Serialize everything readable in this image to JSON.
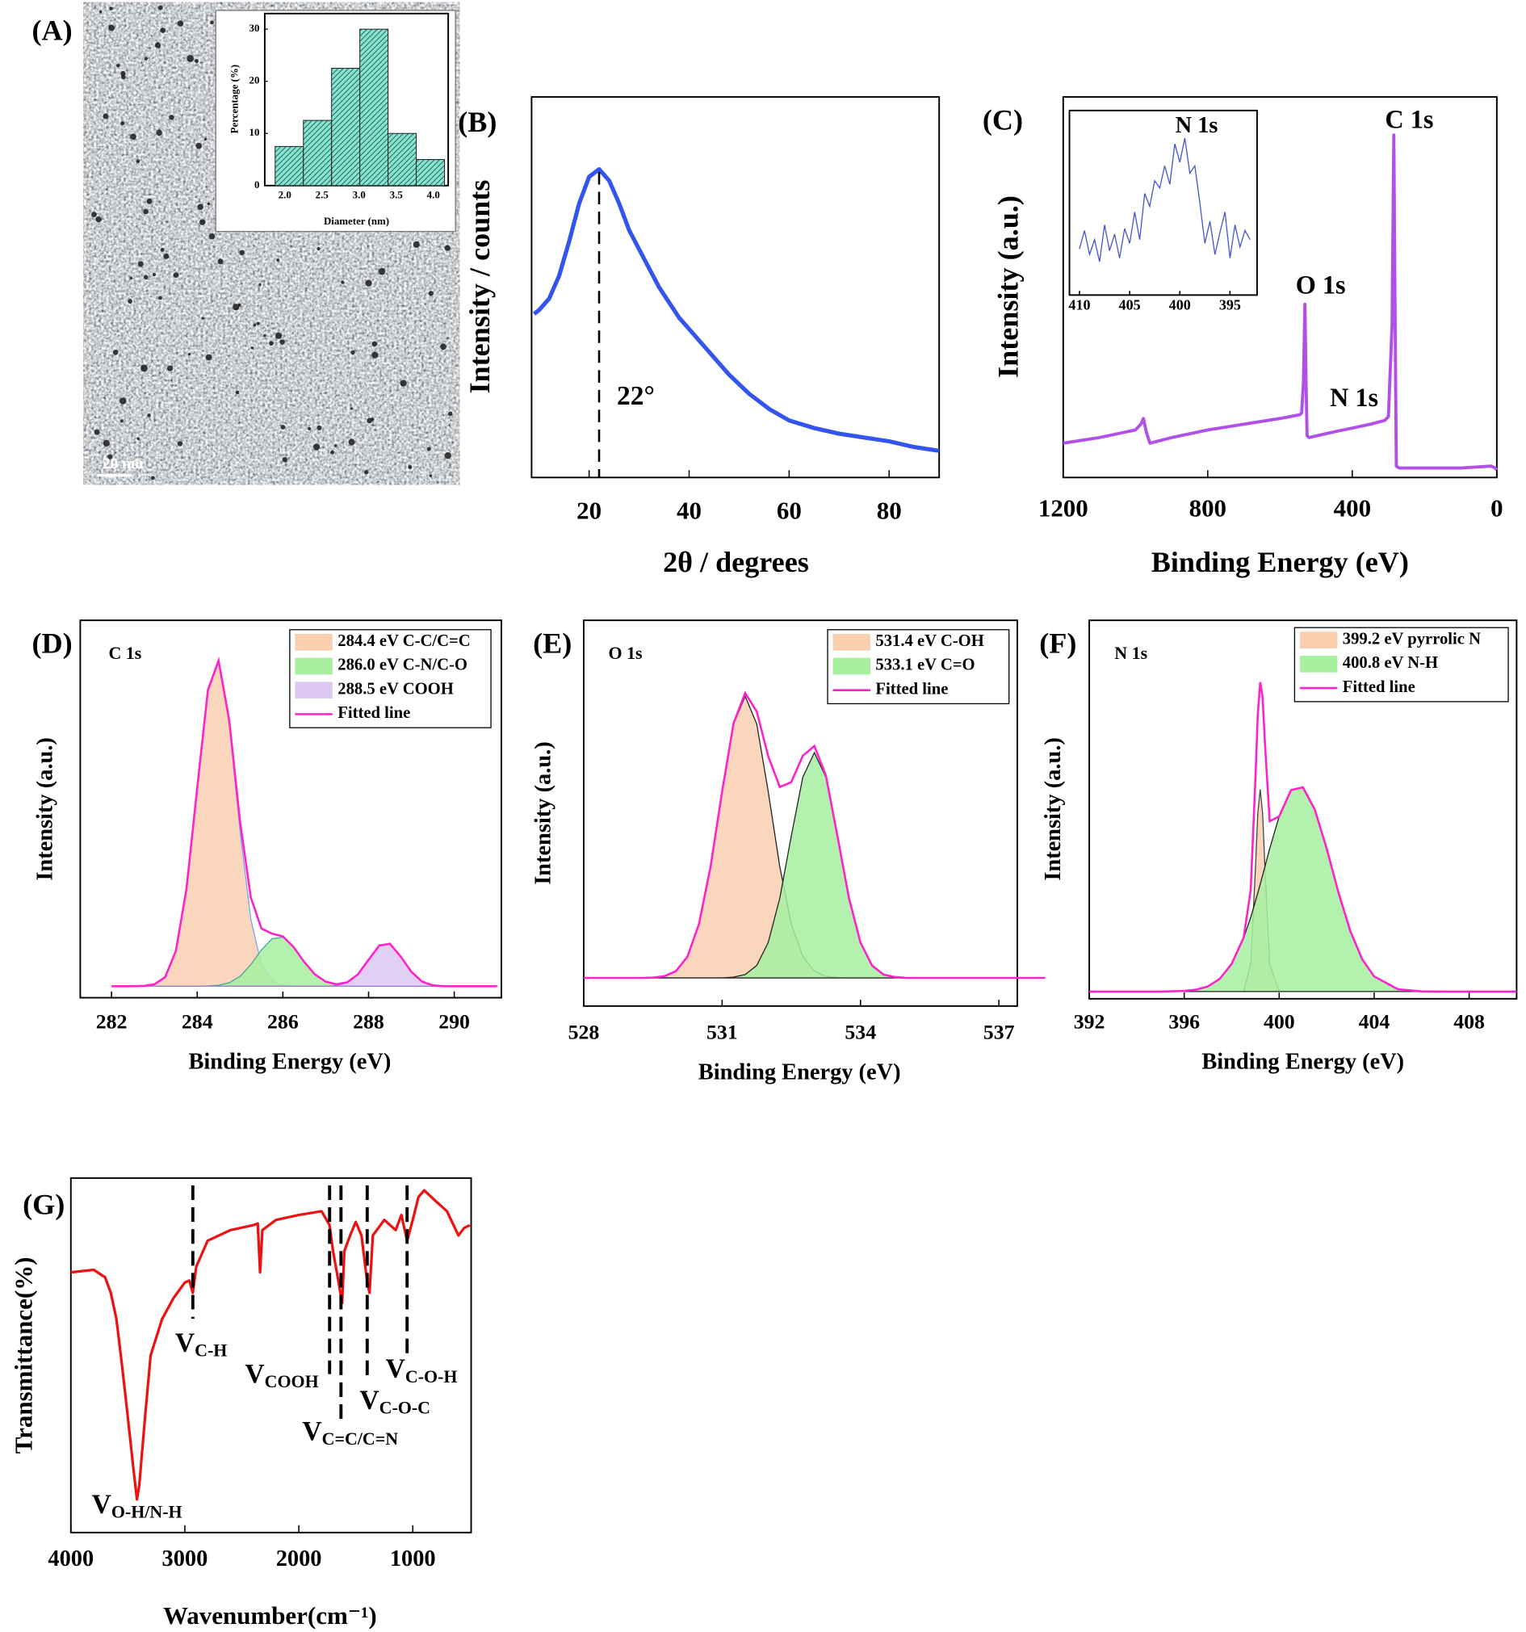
{
  "chart_data": [
    {
      "type": "histogram",
      "panel_label": "(A)",
      "scale_bar": "20 nm",
      "xlabel": "Diameter (nm)",
      "ylabel": "Percentage (%)",
      "bins": [
        1.87,
        2.25,
        2.63,
        3.01,
        3.39,
        3.77,
        4.15
      ],
      "values": [
        7.5,
        12.5,
        22.5,
        30,
        10,
        5
      ],
      "color": "#7fe6d2",
      "hatch": true,
      "xlim": [
        1.73,
        4.2
      ],
      "ylim": [
        0,
        33
      ],
      "xticks": [
        {
          "value": 2,
          "label": "2.0"
        },
        {
          "value": 2.5,
          "label": "2.5"
        },
        {
          "value": 3,
          "label": "3.0"
        },
        {
          "value": 3.5,
          "label": "3.5"
        },
        {
          "value": 4,
          "label": "4.0"
        }
      ],
      "yticks": [
        0,
        10,
        20,
        30
      ]
    },
    {
      "type": "line",
      "panel_label": "(B)",
      "xlabel": "2θ / degrees",
      "ylabel": "Intensity / counts",
      "x": [
        9,
        10,
        12,
        14,
        16,
        18,
        20,
        22,
        24,
        26,
        28,
        30,
        32,
        34,
        36,
        38,
        40,
        44,
        48,
        52,
        56,
        60,
        65,
        70,
        75,
        80,
        85,
        90
      ],
      "values": [
        43,
        44,
        47,
        53,
        62,
        72,
        79,
        81,
        78,
        72,
        65,
        60,
        55,
        50,
        46,
        42,
        39,
        33,
        27,
        22,
        18,
        15,
        13,
        11.5,
        10.5,
        9.5,
        8,
        7
      ],
      "color": "#3355ee",
      "xlim": [
        8.5,
        90
      ],
      "ylim": [
        0,
        100
      ],
      "xticks": [
        20,
        40,
        60,
        80
      ],
      "vline": 22,
      "annotation": "22°"
    },
    {
      "type": "line",
      "panel_label": "(C)",
      "xlabel": "Binding Energy (eV)",
      "ylabel": "Intensity (a.u.)",
      "x": [
        1200,
        1100,
        1000,
        985,
        978,
        970,
        960,
        900,
        800,
        700,
        600,
        545,
        540,
        535,
        531,
        528,
        525,
        520,
        450,
        400,
        350,
        310,
        300,
        290,
        285,
        282,
        278,
        270,
        200,
        100,
        15,
        5,
        0
      ],
      "values": [
        9,
        10.5,
        12.5,
        14,
        15.5,
        12,
        9,
        10.5,
        12.5,
        14,
        15.5,
        16.5,
        17,
        25,
        45.5,
        25,
        11,
        10.5,
        12,
        13,
        14,
        15,
        16,
        40,
        90,
        50,
        3,
        2.5,
        2.5,
        2.5,
        3,
        2.5,
        2
      ],
      "color": "#b050e8",
      "xlim": [
        1200,
        0
      ],
      "ylim": [
        0,
        100
      ],
      "xticks": [
        1200,
        800,
        400,
        0
      ],
      "annotations": [
        "C 1s",
        "O 1s",
        "N 1s"
      ],
      "inset": {
        "type": "line",
        "title": "N 1s",
        "x": [
          410,
          409.5,
          409,
          408.5,
          408,
          407.5,
          407,
          406.5,
          406,
          405.5,
          405,
          404.5,
          404,
          403.5,
          403,
          402.5,
          402,
          401.5,
          401,
          400.5,
          400,
          399.5,
          399,
          398.5,
          398,
          397.5,
          397,
          396.5,
          396,
          395.5,
          395,
          394.5,
          394,
          393.5,
          393
        ],
        "values": [
          25,
          35,
          22,
          30,
          18,
          38,
          24,
          33,
          20,
          36,
          28,
          45,
          30,
          55,
          48,
          62,
          58,
          70,
          60,
          82,
          72,
          85,
          66,
          70,
          50,
          28,
          40,
          22,
          34,
          45,
          20,
          38,
          26,
          35,
          30
        ],
        "color": "#4455cc",
        "xlim": [
          411,
          392.3
        ],
        "ylim": [
          0,
          100
        ],
        "xticks": [
          410,
          405,
          400,
          395
        ]
      }
    },
    {
      "type": "line",
      "panel_label": "(D)",
      "label": "C 1s",
      "xlabel": "Binding Energy (eV)",
      "ylabel": "Intensity (a.u.)",
      "x": [
        282,
        282.25,
        282.5,
        282.75,
        283,
        283.25,
        283.5,
        283.75,
        284,
        284.25,
        284.5,
        284.75,
        285,
        285.25,
        285.5,
        285.75,
        286,
        286.25,
        286.5,
        286.75,
        287,
        287.25,
        287.5,
        287.75,
        288,
        288.25,
        288.5,
        288.75,
        289,
        289.25,
        289.5,
        289.75,
        290,
        290.25,
        290.5,
        290.75,
        291
      ],
      "series": [
        {
          "name": "284.4 eV C-C/C=C",
          "color": "#7aa6e6",
          "fill": "#f9cfb0",
          "values": [
            0,
            0,
            0,
            0.1,
            0.6,
            2.8,
            10.8,
            29.8,
            60.7,
            90.6,
            99.4,
            80.1,
            47.4,
            20.6,
            6.6,
            1.5,
            0.3,
            0,
            0,
            0,
            0,
            0,
            0,
            0,
            0,
            0,
            0,
            0,
            0,
            0,
            0,
            0,
            0,
            0,
            0,
            0,
            0
          ]
        },
        {
          "name": "286.0 eV C-N/C-O",
          "color": "#40a8a0",
          "fill": "#a6f0a0",
          "values": [
            0,
            0,
            0,
            0,
            0,
            0,
            0,
            0,
            0,
            0.1,
            0.3,
            1.1,
            3.0,
            6.6,
            11.1,
            14.6,
            15.0,
            12.0,
            7.4,
            3.6,
            1.4,
            0.4,
            0.1,
            0,
            0,
            0,
            0,
            0,
            0,
            0,
            0,
            0,
            0,
            0,
            0,
            0,
            0
          ]
        },
        {
          "name": "288.5 eV COOH",
          "color": "#a080d0",
          "fill": "#dcc8f2",
          "values": [
            0,
            0,
            0,
            0,
            0,
            0,
            0,
            0,
            0,
            0,
            0,
            0,
            0,
            0,
            0,
            0,
            0,
            0,
            0,
            0,
            0,
            0.2,
            1.1,
            3.6,
            8.1,
            12.5,
            13.0,
            9.1,
            4.4,
            1.4,
            0.3,
            0,
            0,
            0,
            0,
            0,
            0
          ]
        },
        {
          "name": "Fitted line",
          "color": "#ff22cc",
          "values": [
            0,
            0,
            0,
            0.1,
            0.6,
            2.8,
            10.8,
            29.8,
            60.7,
            90.7,
            99.7,
            81.2,
            50.4,
            27.2,
            17.7,
            16.1,
            15.3,
            12.0,
            7.4,
            3.6,
            1.4,
            0.6,
            1.2,
            3.6,
            8.1,
            12.5,
            13.0,
            9.1,
            4.4,
            1.4,
            0.3,
            0,
            0,
            0,
            0,
            0,
            0
          ]
        }
      ],
      "xlim": [
        281.27,
        291.1
      ],
      "ylim": [
        -3.5,
        112
      ],
      "xticks": [
        282,
        284,
        286,
        288,
        290
      ]
    },
    {
      "type": "line",
      "panel_label": "(E)",
      "label": "O 1s",
      "xlabel": "Binding Energy (eV)",
      "ylabel": "Intensity (a.u.)",
      "x": [
        528,
        529,
        529.25,
        529.5,
        529.75,
        530,
        530.25,
        530.5,
        530.75,
        531,
        531.25,
        531.5,
        531.75,
        532,
        532.25,
        532.5,
        532.75,
        533,
        533.25,
        533.5,
        533.75,
        534,
        534.25,
        534.5,
        534.75,
        535,
        535.25,
        535.5,
        538
      ],
      "series": [
        {
          "name": "531.4 eV C-OH",
          "color": "#222222",
          "fill": "#f9cfb0",
          "values": [
            0,
            0,
            0,
            0.1,
            0.6,
            2.4,
            7.6,
            19.2,
            39.5,
            66.2,
            90.2,
            100,
            90.2,
            66.2,
            39.5,
            19.2,
            7.6,
            2.4,
            0.6,
            0.1,
            0,
            0,
            0,
            0,
            0,
            0,
            0,
            0,
            0
          ]
        },
        {
          "name": "533.1 eV C=O",
          "color": "#222222",
          "fill": "#a6f0a0",
          "values": [
            0,
            0,
            0,
            0,
            0,
            0,
            0,
            0,
            0,
            0,
            0.3,
            1.2,
            4.4,
            12.6,
            28.3,
            50.3,
            71.3,
            80,
            71.3,
            50.3,
            28.3,
            12.6,
            4.4,
            1.2,
            0.3,
            0,
            0,
            0,
            0
          ]
        },
        {
          "name": "Fitted line",
          "color": "#ff22cc",
          "values": [
            0,
            0,
            0,
            0.1,
            0.6,
            2.4,
            7.6,
            19.2,
            39.5,
            66.2,
            90.5,
            101.2,
            94.6,
            78.8,
            67.8,
            69.5,
            78.9,
            82.4,
            71.9,
            50.4,
            28.3,
            12.6,
            4.4,
            1.2,
            0.3,
            0,
            0,
            0,
            0
          ]
        }
      ],
      "xlim": [
        528,
        537.4
      ],
      "ylim": [
        -10,
        127
      ],
      "xticks": [
        528,
        531,
        534,
        537
      ]
    },
    {
      "type": "line",
      "panel_label": "(F)",
      "label": "N 1s",
      "xlabel": "Binding Energy (eV)",
      "ylabel": "Intensity (a.u.)",
      "x": [
        392,
        394,
        395,
        396,
        396.5,
        397,
        397.5,
        398,
        398.5,
        398.8,
        399,
        399.1,
        399.2,
        399.3,
        399.4,
        399.6,
        400,
        400.5,
        401,
        401.5,
        402,
        402.5,
        403,
        403.5,
        404,
        405,
        406,
        407,
        408,
        410
      ],
      "series": [
        {
          "name": "399.2 eV pyrrolic N",
          "color": "#444444",
          "fill": "#f9cfb0",
          "values": [
            0,
            0,
            0,
            0,
            0,
            0,
            0,
            0,
            0.2,
            13.3,
            59.4,
            86.5,
            98,
            86.5,
            59.4,
            13.3,
            0,
            0,
            0,
            0,
            0,
            0,
            0,
            0,
            0,
            0,
            0,
            0,
            0,
            0
          ]
        },
        {
          "name": "400.8 eV N-H",
          "color": "#222222",
          "fill": "#a6f0a0",
          "values": [
            0,
            0,
            0,
            0.3,
            0.9,
            2.5,
            6.2,
            13.5,
            25.9,
            36.0,
            43.7,
            47.8,
            52.0,
            56.3,
            60.7,
            69.3,
            84.9,
            97.7,
            99.0,
            88.2,
            69.3,
            47.8,
            29.1,
            15.6,
            7.3,
            1.1,
            0.1,
            0,
            0,
            0
          ]
        },
        {
          "name": "Fitted line",
          "color": "#ff22cc",
          "values": [
            0,
            0,
            0,
            0.3,
            0.9,
            2.5,
            6.2,
            13.5,
            26.1,
            49.3,
            103.1,
            134.3,
            150,
            142.8,
            120.1,
            82.6,
            84.9,
            97.7,
            99,
            88.2,
            69.3,
            47.8,
            29.1,
            15.6,
            7.3,
            1.1,
            0.1,
            0,
            0,
            0
          ]
        }
      ],
      "xlim": [
        392,
        410
      ],
      "ylim": [
        -3.5,
        180
      ],
      "xticks": [
        392,
        396,
        400,
        404,
        408
      ]
    },
    {
      "type": "line",
      "panel_label": "(G)",
      "xlabel": "Wavenumber(cm⁻¹)",
      "ylabel": "Transmittance(%)",
      "x": [
        4000,
        3800,
        3700,
        3650,
        3600,
        3550,
        3500,
        3450,
        3420,
        3400,
        3350,
        3300,
        3200,
        3100,
        3000,
        2960,
        2930,
        2900,
        2800,
        2600,
        2400,
        2360,
        2340,
        2320,
        2200,
        2000,
        1800,
        1730,
        1700,
        1650,
        1620,
        1600,
        1550,
        1500,
        1450,
        1400,
        1380,
        1350,
        1250,
        1150,
        1100,
        1050,
        1000,
        950,
        900,
        800,
        700,
        600,
        550,
        500
      ],
      "values": [
        77,
        77.6,
        75.8,
        72,
        65.6,
        54,
        41.5,
        28.8,
        21.6,
        25,
        41.5,
        56.7,
        65.6,
        70.7,
        74.5,
        75,
        72,
        78.4,
        84.7,
        87.3,
        88.5,
        88.9,
        77,
        87.3,
        89.8,
        91,
        91.9,
        88.5,
        82.2,
        74.5,
        69.5,
        82.2,
        86,
        89.3,
        86,
        74.5,
        72,
        86,
        89.8,
        87.3,
        91,
        84.7,
        89.8,
        95.4,
        97,
        94.4,
        91.9,
        86,
        87.8,
        88.5
      ],
      "color": "#ee1111",
      "xlim": [
        4000,
        488
      ],
      "ylim": [
        13.5,
        100
      ],
      "xticks": [
        4000,
        3000,
        2000,
        1000
      ],
      "vlines": [
        2930,
        1730,
        1630,
        1400,
        1050
      ],
      "annotations": [
        {
          "text": "V",
          "sub": "C-H"
        },
        {
          "text": "V",
          "sub": "COOH"
        },
        {
          "text": "V",
          "sub": "C=C/C=N"
        },
        {
          "text": "V",
          "sub": "C-O-C"
        },
        {
          "text": "V",
          "sub": "C-O-H"
        },
        {
          "text": "V",
          "sub": "O-H/N-H"
        }
      ]
    }
  ]
}
